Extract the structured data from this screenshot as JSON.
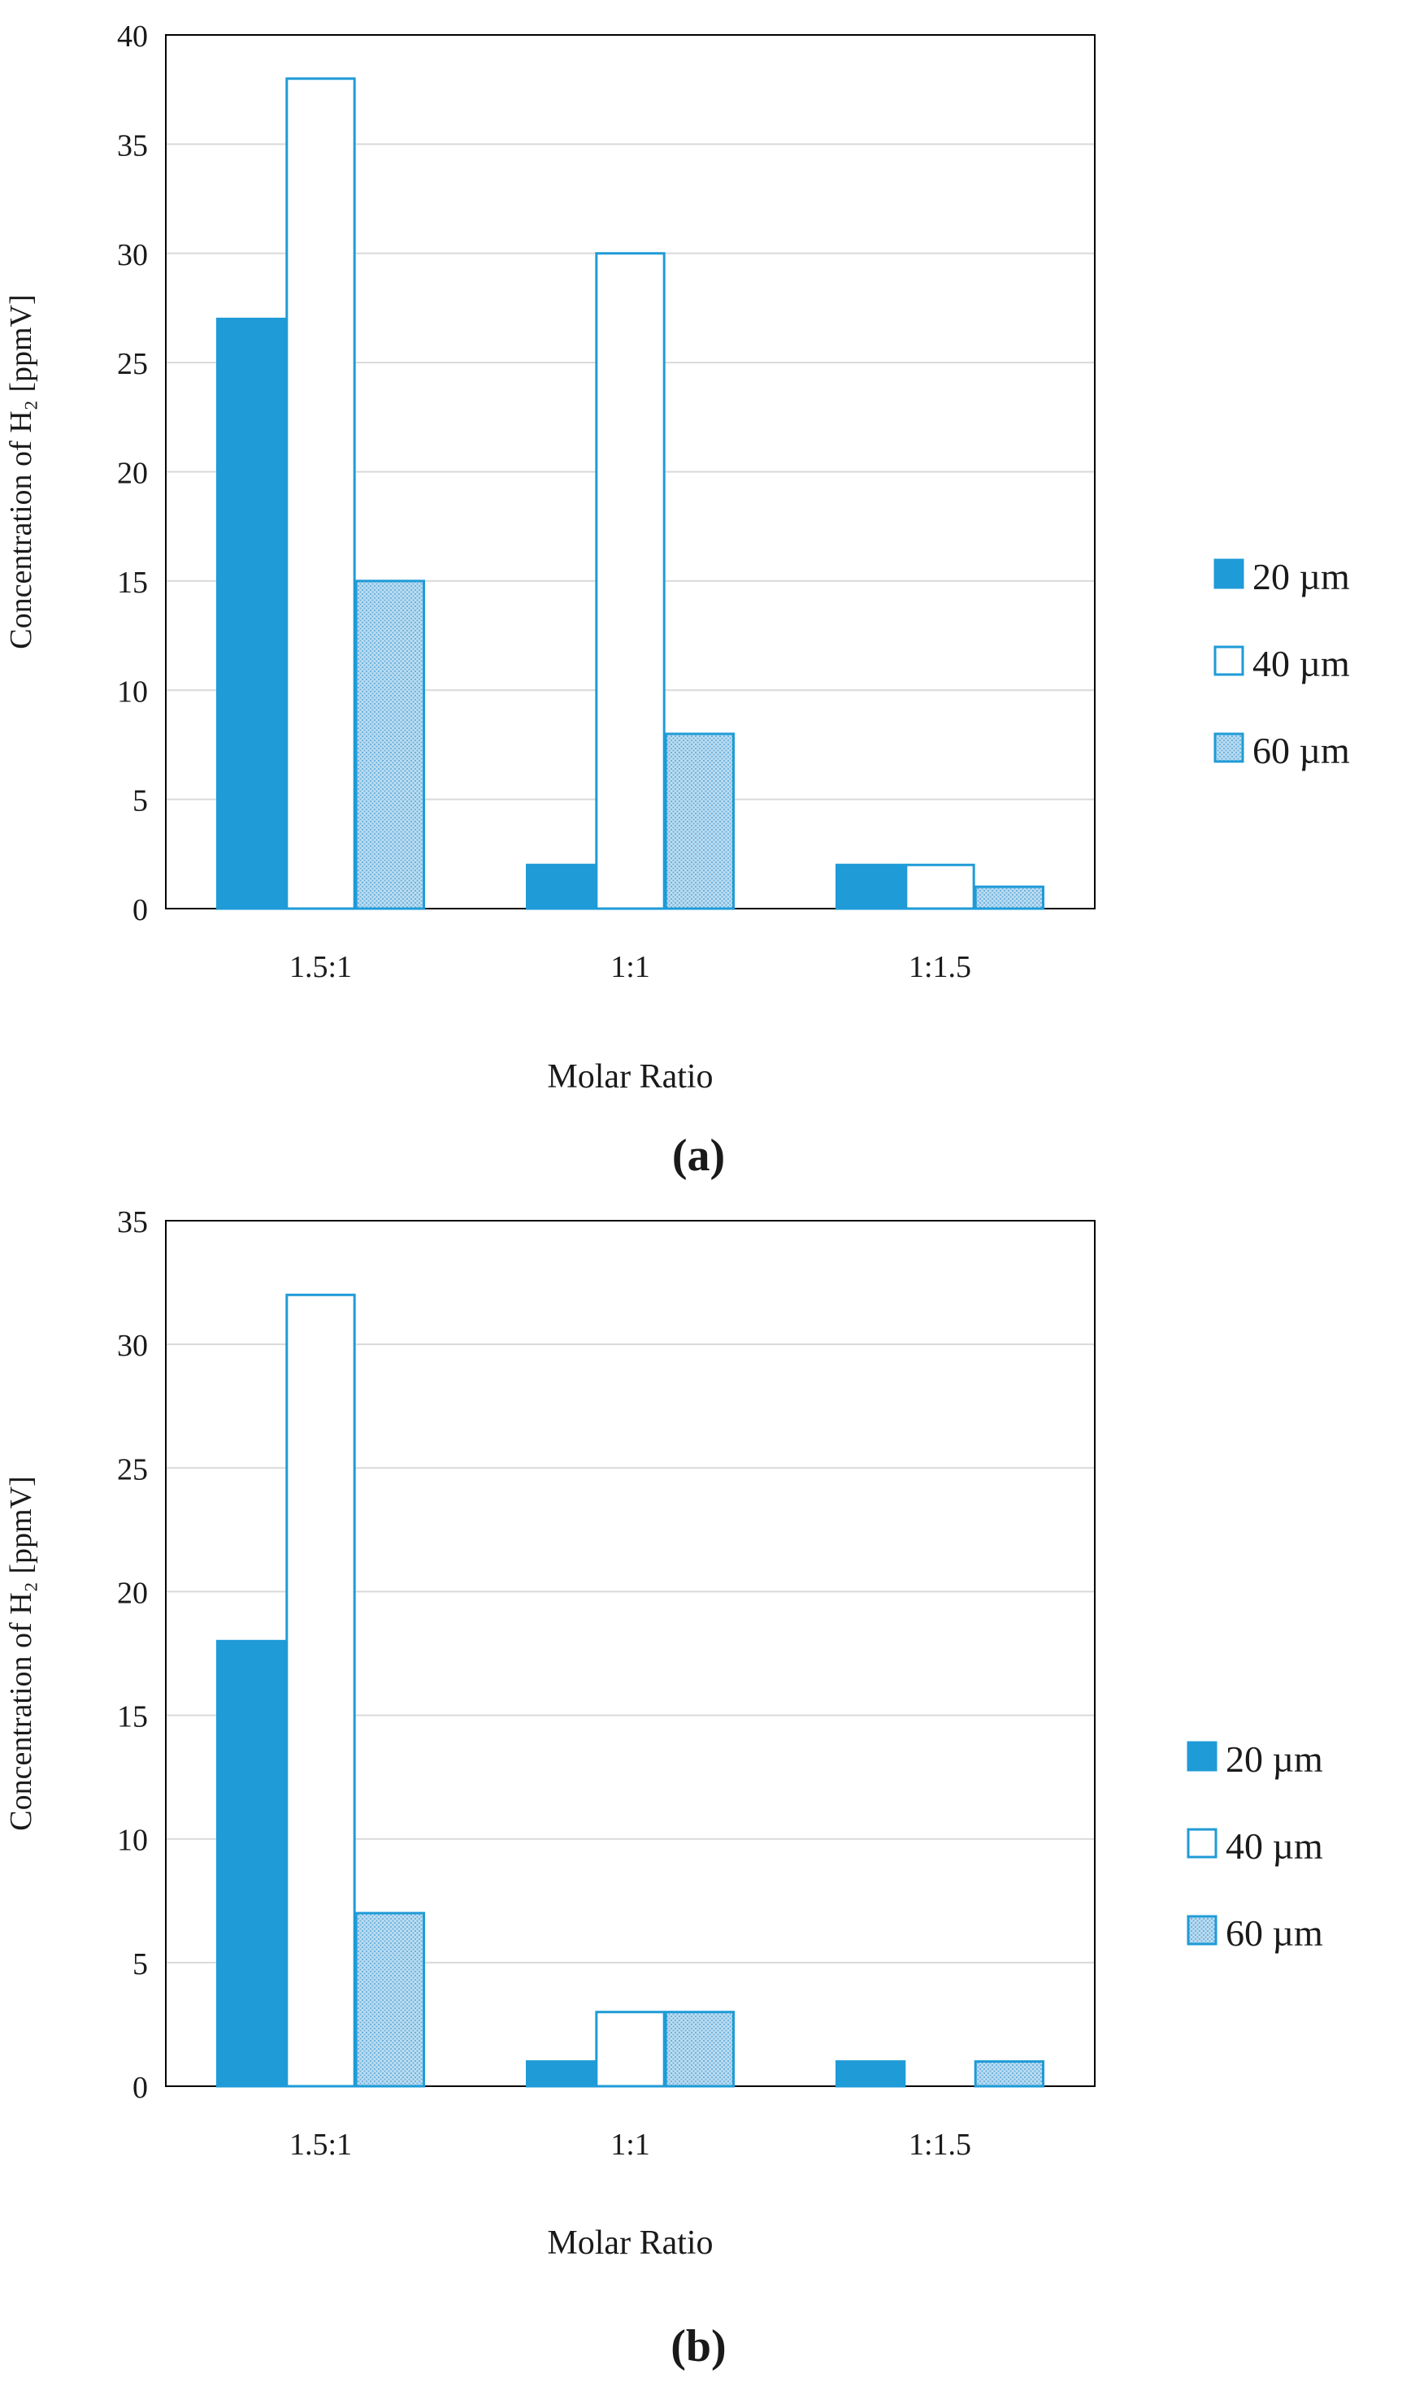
{
  "colors": {
    "primary": "#1f9bd7",
    "white": "#ffffff",
    "hatch": "#9ccbe8",
    "grid": "#d9d9d9",
    "axis": "#000000"
  },
  "chart_data": [
    {
      "panel_label": "(a)",
      "type": "bar",
      "categories": [
        "1.5:1",
        "1:1",
        "1:1.5"
      ],
      "series": [
        {
          "name": "20 µm",
          "style": "solid",
          "values": [
            27,
            2,
            2
          ]
        },
        {
          "name": "40 µm",
          "style": "outline",
          "values": [
            38,
            30,
            2
          ]
        },
        {
          "name": "60 µm",
          "style": "hatched",
          "values": [
            15,
            8,
            1
          ]
        }
      ],
      "xlabel": "Molar Ratio",
      "ylabel": "Concentration of H₂ [ppmV]",
      "ylim": [
        0,
        40
      ],
      "yticks": [
        0,
        5,
        10,
        15,
        20,
        25,
        30,
        35,
        40
      ],
      "grid": true,
      "legend": "right"
    },
    {
      "panel_label": "(b)",
      "type": "bar",
      "categories": [
        "1.5:1",
        "1:1",
        "1:1.5"
      ],
      "series": [
        {
          "name": "20 µm",
          "style": "solid",
          "values": [
            18,
            1,
            1
          ]
        },
        {
          "name": "40 µm",
          "style": "outline",
          "values": [
            32,
            3,
            0
          ]
        },
        {
          "name": "60 µm",
          "style": "hatched",
          "values": [
            7,
            3,
            1
          ]
        }
      ],
      "xlabel": "Molar Ratio",
      "ylabel": "Concentration of H₂ [ppmV]",
      "ylim": [
        0,
        35
      ],
      "yticks": [
        0,
        5,
        10,
        15,
        20,
        25,
        30,
        35
      ],
      "grid": true,
      "legend": "right"
    }
  ]
}
